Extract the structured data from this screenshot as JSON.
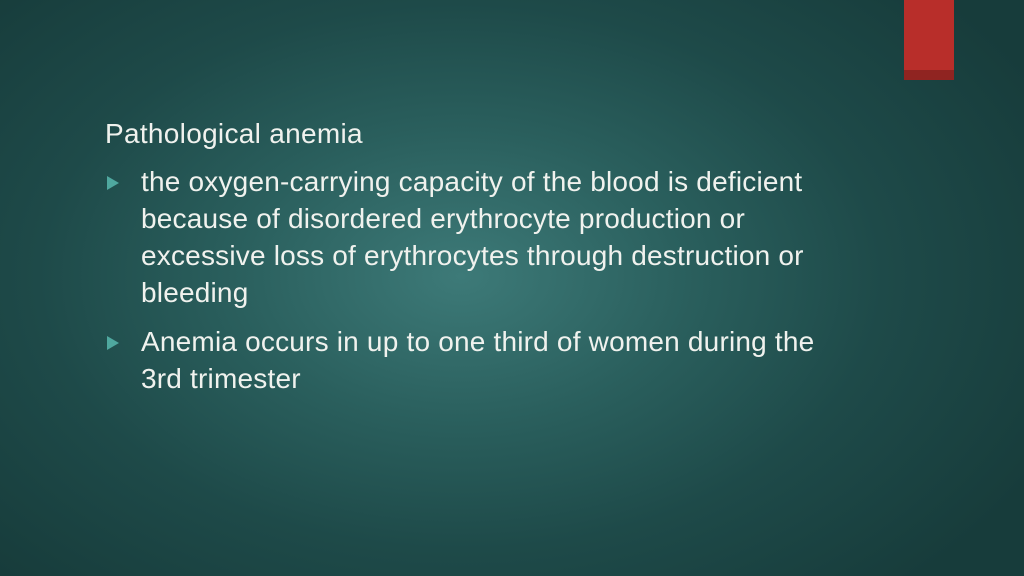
{
  "slide": {
    "title": "Pathological anemia",
    "bullets": [
      "the oxygen-carrying capacity of the blood is deficient because of disordered erythrocyte production or excessive loss of erythrocytes through destruction or bleeding",
      "Anemia occurs in up to one third of women during the 3rd trimester"
    ]
  },
  "style": {
    "background_gradient_center": "#3d7a78",
    "background_gradient_edge": "#173c3b",
    "text_color": "#f0f2ee",
    "bullet_marker_color": "#4fa89f",
    "ribbon_color": "#b82e2a",
    "title_fontsize": 28,
    "bullet_fontsize": 28,
    "font_family": "Century Gothic",
    "slide_width": 1024,
    "slide_height": 576
  }
}
